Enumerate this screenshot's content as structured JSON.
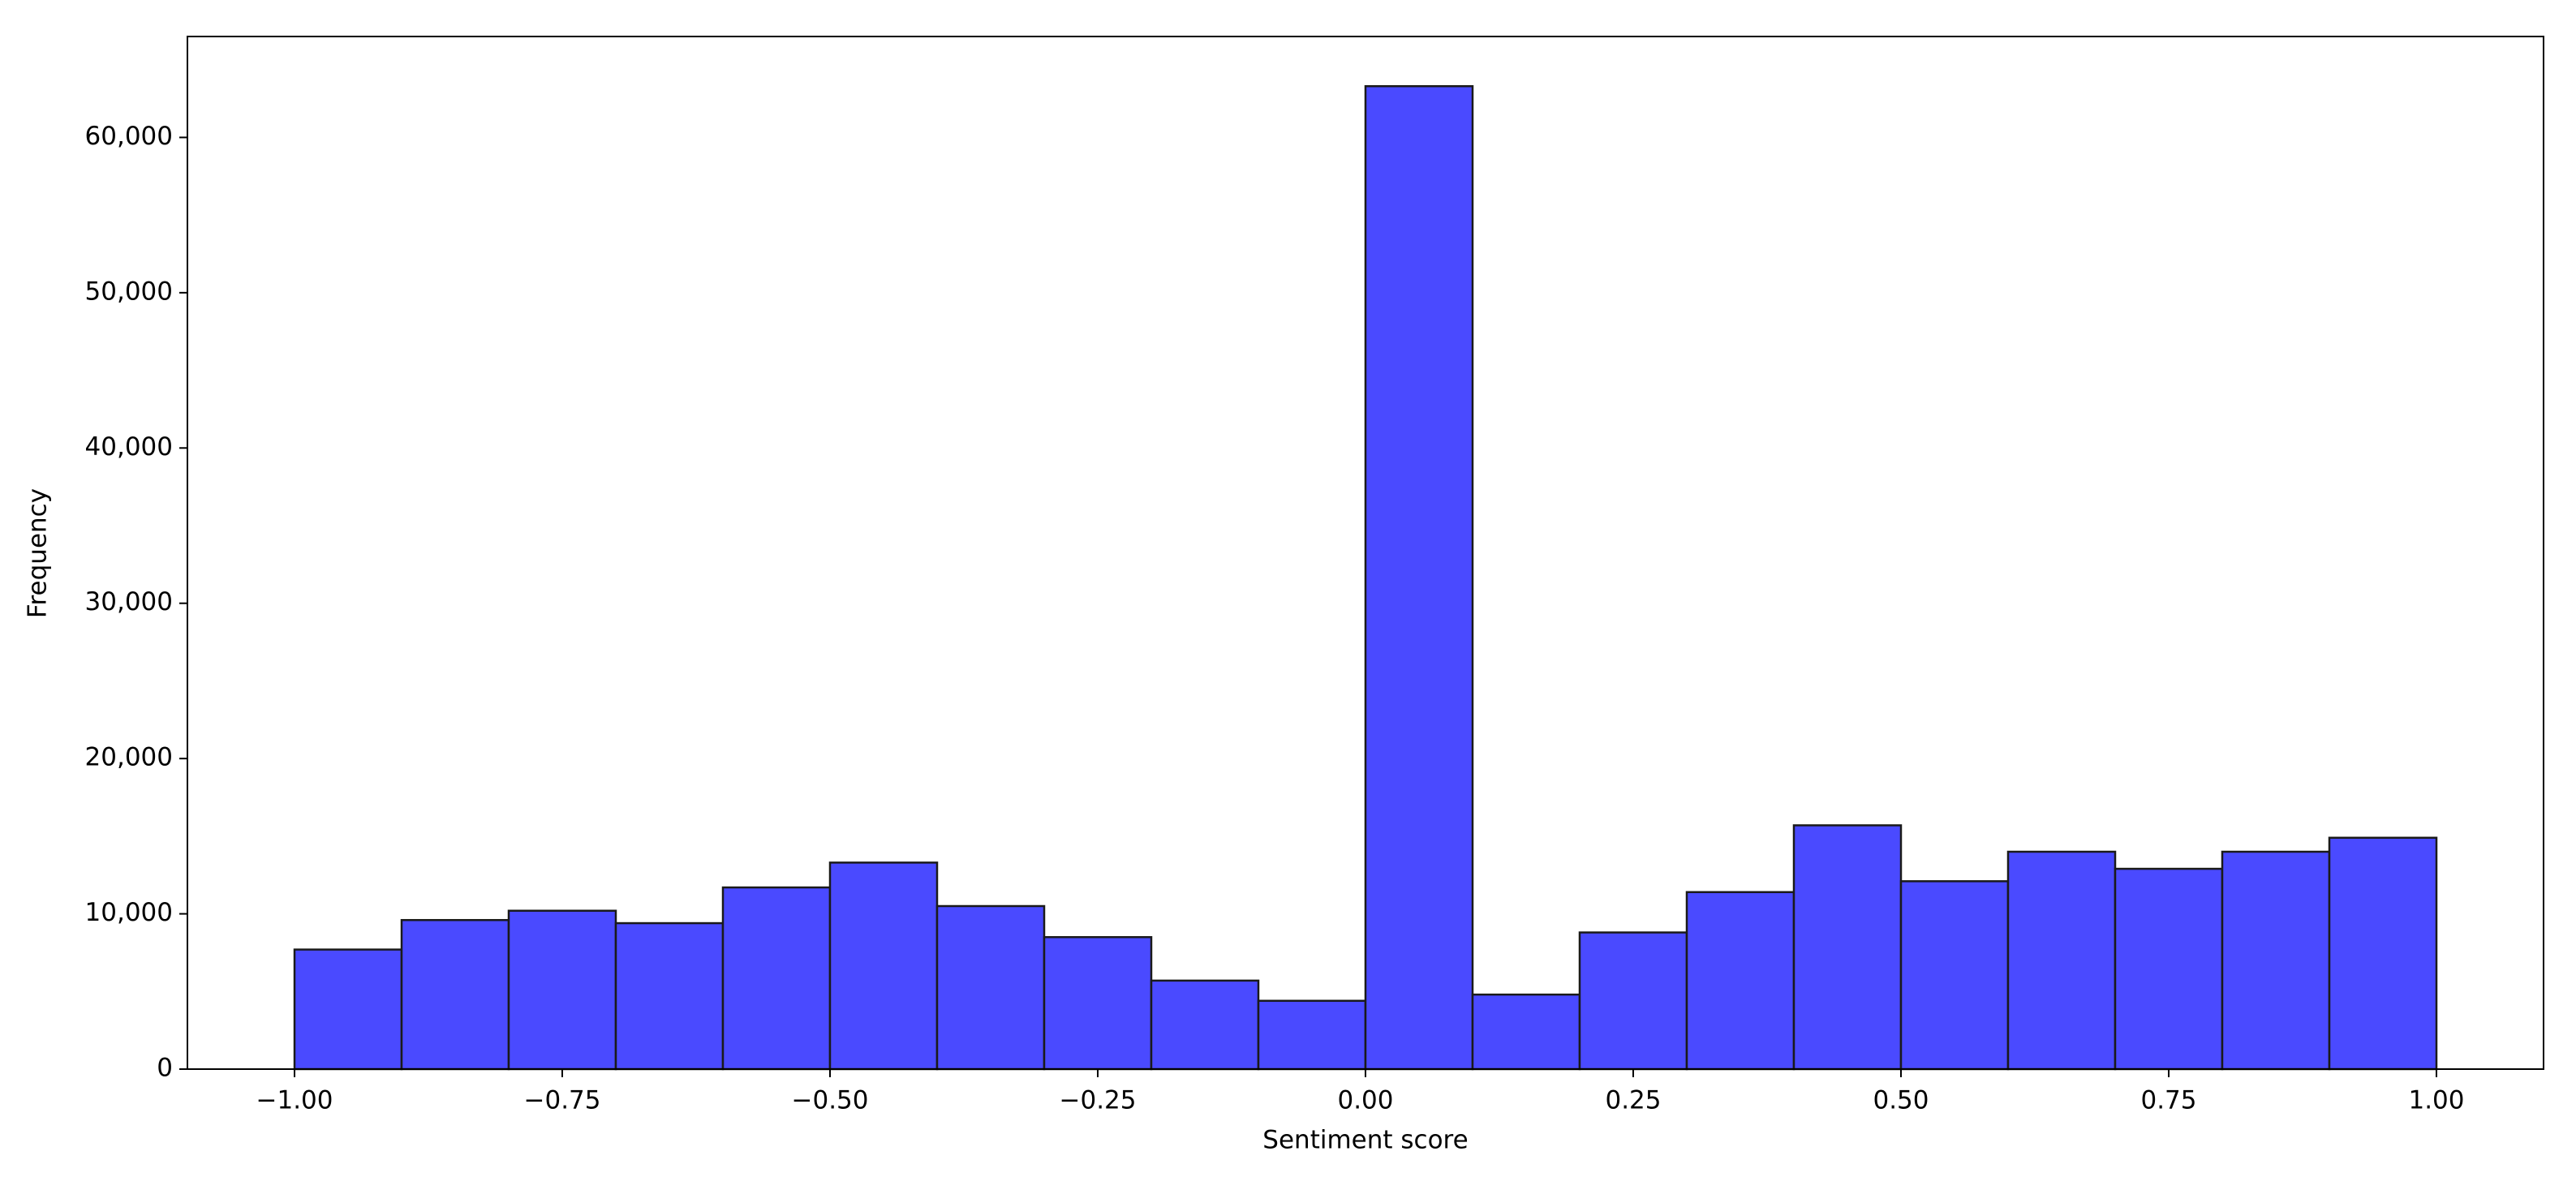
{
  "chart_data": {
    "type": "histogram",
    "xlabel": "Sentiment score",
    "ylabel": "Frequency",
    "bins": [
      -1.0,
      -0.9,
      -0.8,
      -0.7,
      -0.6,
      -0.5,
      -0.4,
      -0.3,
      -0.2,
      -0.1,
      0.0,
      0.1,
      0.2,
      0.3,
      0.4,
      0.5,
      0.6,
      0.7,
      0.8,
      0.9,
      1.0
    ],
    "values": [
      7700,
      9600,
      10200,
      9400,
      11700,
      13300,
      10500,
      8500,
      5700,
      4400,
      63300,
      4800,
      8800,
      11400,
      15700,
      12100,
      14000,
      12900,
      14000,
      14900
    ],
    "color": "#4a4aff",
    "edgecolor": "#1a1a1a",
    "xlim": [
      -1.1,
      1.1
    ],
    "ylim": [
      0,
      66500
    ],
    "xticks": [
      {
        "value": -1.0,
        "label": "−1.00"
      },
      {
        "value": -0.75,
        "label": "−0.75"
      },
      {
        "value": -0.5,
        "label": "−0.50"
      },
      {
        "value": -0.25,
        "label": "−0.25"
      },
      {
        "value": 0.0,
        "label": "0.00"
      },
      {
        "value": 0.25,
        "label": "0.25"
      },
      {
        "value": 0.5,
        "label": "0.50"
      },
      {
        "value": 0.75,
        "label": "0.75"
      },
      {
        "value": 1.0,
        "label": "1.00"
      }
    ],
    "yticks": [
      0,
      {
        "value": 10000,
        "label": "10,000"
      },
      {
        "value": 20000,
        "label": "20,000"
      },
      {
        "value": 30000,
        "label": "30,000"
      },
      {
        "value": 40000,
        "label": "40,000"
      },
      {
        "value": 50000,
        "label": "50,000"
      },
      {
        "value": 60000,
        "label": "60,000"
      }
    ],
    "grid": false
  }
}
